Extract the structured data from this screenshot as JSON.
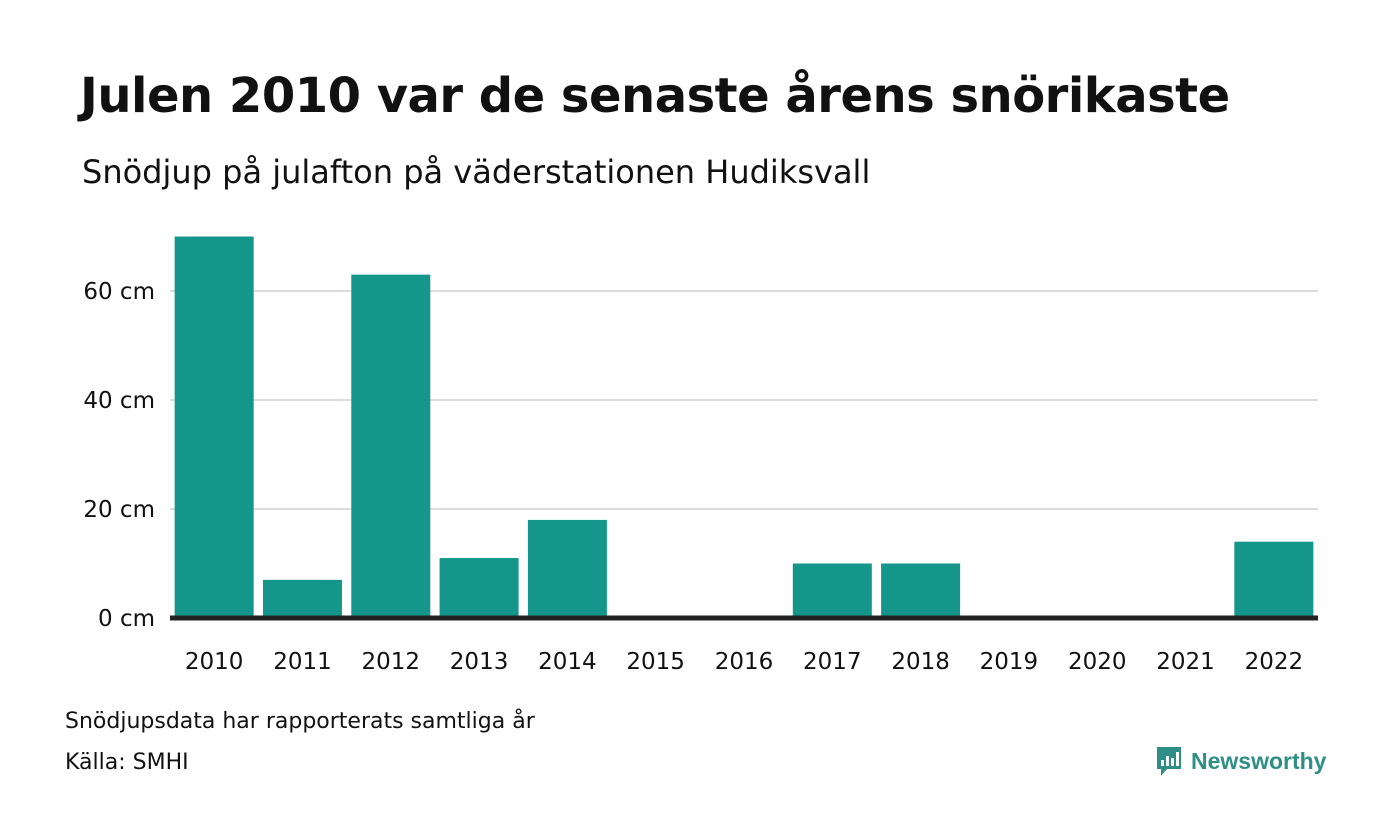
{
  "title": "Julen 2010 var de senaste årens snörikaste",
  "subtitle": "Snödjup på julafton på väderstationen Hudiksvall",
  "footnote": "Snödjupsdata har rapporterats samtliga år",
  "source": "Källa: SMHI",
  "brand": {
    "name": "Newsworthy",
    "icon": "newsworthy-logo-icon",
    "color": "#2e8f86"
  },
  "colors": {
    "bar": "#14968a",
    "baseline": "#222222",
    "grid": "#dddddd",
    "text": "#111111"
  },
  "chart_data": {
    "type": "bar",
    "title": "Julen 2010 var de senaste årens snörikaste",
    "subtitle": "Snödjup på julafton på väderstationen Hudiksvall",
    "xlabel": "",
    "ylabel": "",
    "unit": "cm",
    "categories": [
      "2010",
      "2011",
      "2012",
      "2013",
      "2014",
      "2015",
      "2016",
      "2017",
      "2018",
      "2019",
      "2020",
      "2021",
      "2022"
    ],
    "values": [
      70,
      7,
      63,
      11,
      18,
      0,
      0,
      10,
      10,
      0,
      0,
      0,
      14
    ],
    "ylim": [
      0,
      70
    ],
    "yticks": [
      {
        "value": 0,
        "label": "0 cm"
      },
      {
        "value": 20,
        "label": "20 cm"
      },
      {
        "value": 40,
        "label": "40 cm"
      },
      {
        "value": 60,
        "label": "60 cm"
      }
    ],
    "grid": true,
    "legend": "none"
  }
}
